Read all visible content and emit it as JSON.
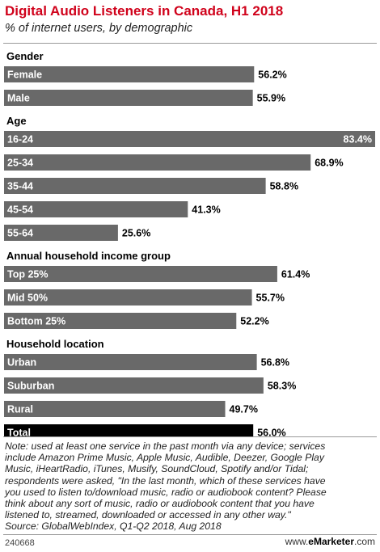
{
  "header": {
    "title": "Digital Audio Listeners in Canada, H1 2018",
    "subtitle": "% of internet users, by demographic"
  },
  "colors": {
    "title": "#d0021b",
    "bar": "#696969",
    "total_bar": "#000000",
    "label_text": "#ffffff"
  },
  "chart_data": {
    "type": "bar",
    "orientation": "horizontal",
    "title": "Digital Audio Listeners in Canada, H1 2018",
    "subtitle": "% of internet users, by demographic",
    "unit": "%",
    "xlim": [
      0,
      83.4
    ],
    "grid": false,
    "groups": [
      {
        "name": "Gender",
        "bars": [
          {
            "label": "Female",
            "value": 56.2,
            "value_label": "56.2%"
          },
          {
            "label": "Male",
            "value": 55.9,
            "value_label": "55.9%"
          }
        ]
      },
      {
        "name": "Age",
        "bars": [
          {
            "label": "16-24",
            "value": 83.4,
            "value_label": "83.4%"
          },
          {
            "label": "25-34",
            "value": 68.9,
            "value_label": "68.9%"
          },
          {
            "label": "35-44",
            "value": 58.8,
            "value_label": "58.8%"
          },
          {
            "label": "45-54",
            "value": 41.3,
            "value_label": "41.3%"
          },
          {
            "label": "55-64",
            "value": 25.6,
            "value_label": "25.6%"
          }
        ]
      },
      {
        "name": "Annual household income group",
        "bars": [
          {
            "label": "Top 25%",
            "value": 61.4,
            "value_label": "61.4%"
          },
          {
            "label": "Mid 50%",
            "value": 55.7,
            "value_label": "55.7%"
          },
          {
            "label": "Bottom 25%",
            "value": 52.2,
            "value_label": "52.2%"
          }
        ]
      },
      {
        "name": "Household location",
        "bars": [
          {
            "label": "Urban",
            "value": 56.8,
            "value_label": "56.8%"
          },
          {
            "label": "Suburban",
            "value": 58.3,
            "value_label": "58.3%"
          },
          {
            "label": "Rural",
            "value": 49.7,
            "value_label": "49.7%"
          }
        ]
      },
      {
        "name": "",
        "bars": [
          {
            "label": "Total",
            "value": 56.0,
            "value_label": "56.0%",
            "highlight": true
          }
        ]
      }
    ]
  },
  "footer": {
    "note_lines": [
      "Note: used at least one service in the past month via any device; services",
      "include Amazon Prime Music, Apple Music, Audible, Deezer, Google Play",
      "Music, iHeartRadio, iTunes, Musify, SoundCloud, Spotify and/or Tidal;",
      "respondents were asked, \"In the last month, which of these services have",
      "you used to listen to/download music, radio or audiobook content? Please",
      "think about any sort of music, radio or audiobook content that you have",
      "listened to, streamed, downloaded or accessed in any other way.\"",
      "Source: GlobalWebIndex, Q1-Q2 2018, Aug 2018"
    ],
    "chart_id": "240668",
    "brand_prefix": "www.",
    "brand_name": "eMarketer",
    "brand_suffix": ".com"
  }
}
